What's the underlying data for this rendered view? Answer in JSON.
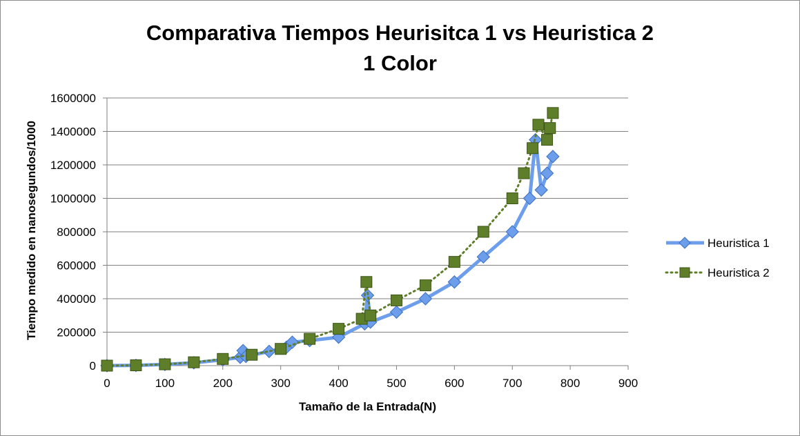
{
  "chart_data": {
    "type": "line",
    "title": [
      "Comparativa Tiempos Heurisitca 1 vs Heuristica 2",
      "1 Color"
    ],
    "xlabel": "Tamaño de la Entrada(N)",
    "ylabel": "Tiempo medido en nanosegundos/1000",
    "xlim": [
      0,
      900
    ],
    "ylim": [
      0,
      1600000
    ],
    "x_ticks": [
      "0",
      "100",
      "200",
      "300",
      "400",
      "500",
      "600",
      "700",
      "800",
      "900"
    ],
    "y_ticks": [
      "0",
      "200000",
      "400000",
      "600000",
      "800000",
      "1000000",
      "1200000",
      "1400000",
      "1600000"
    ],
    "grid": "horizontal",
    "legend": "right",
    "series": [
      {
        "name": "Heuristica 1",
        "color": "#6d9eeb",
        "marker": "diamond",
        "line": "solid",
        "x": [
          0,
          50,
          100,
          150,
          200,
          230,
          235,
          240,
          280,
          310,
          320,
          350,
          400,
          445,
          450,
          455,
          500,
          550,
          600,
          650,
          700,
          730,
          740,
          750,
          760,
          770
        ],
        "y": [
          0,
          1500,
          7000,
          17000,
          35000,
          50000,
          90000,
          55000,
          85000,
          110000,
          140000,
          150000,
          170000,
          250000,
          420000,
          260000,
          320000,
          400000,
          500000,
          650000,
          800000,
          1000000,
          1350000,
          1050000,
          1150000,
          1250000
        ]
      },
      {
        "name": "Heuristica 2",
        "color": "#5e7e2a",
        "marker": "square",
        "line": "dotted",
        "x": [
          0,
          50,
          100,
          150,
          200,
          250,
          300,
          350,
          400,
          440,
          448,
          455,
          500,
          550,
          600,
          650,
          700,
          720,
          735,
          745,
          760,
          765,
          770
        ],
        "y": [
          0,
          2000,
          8000,
          20000,
          40000,
          65000,
          100000,
          160000,
          220000,
          280000,
          500000,
          300000,
          390000,
          480000,
          620000,
          800000,
          1000000,
          1150000,
          1300000,
          1440000,
          1350000,
          1420000,
          1510000
        ]
      }
    ]
  }
}
